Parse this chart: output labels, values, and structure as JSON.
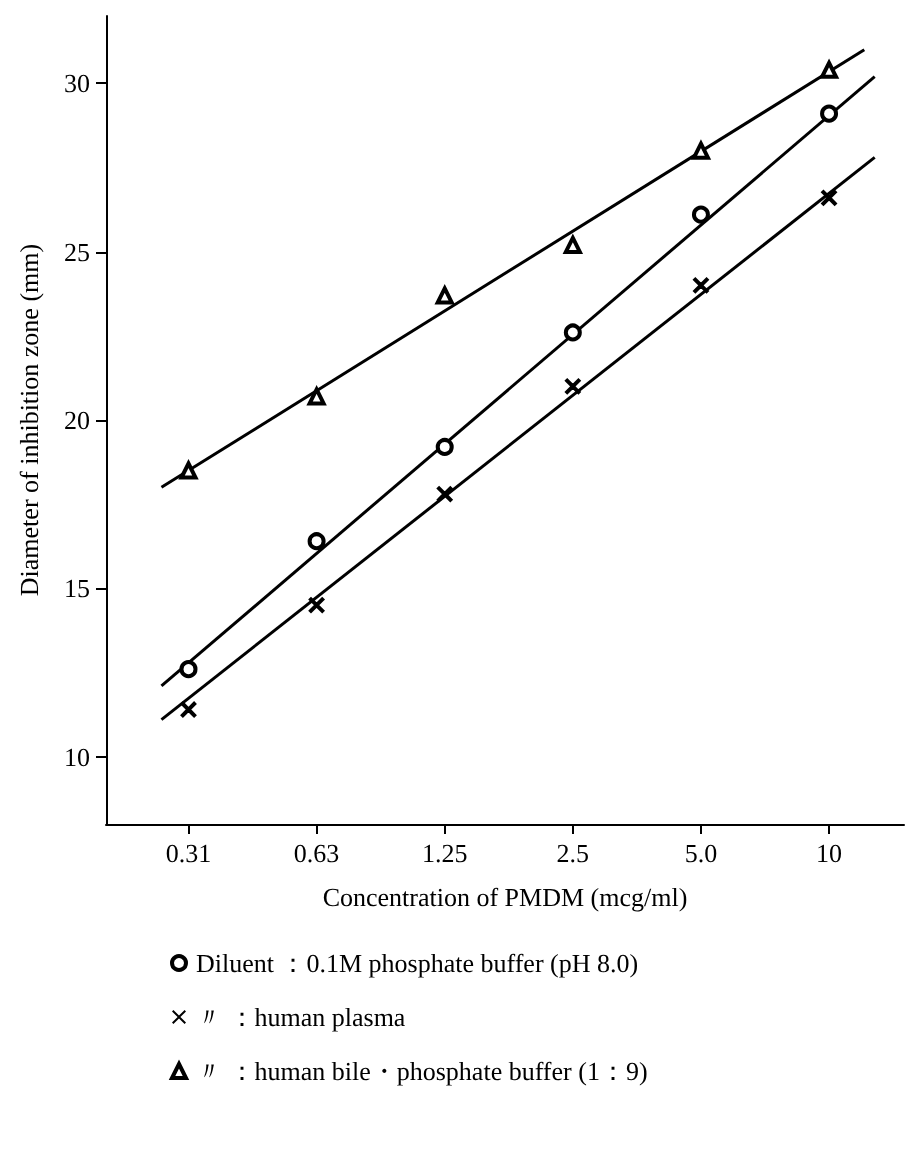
{
  "chart_data": {
    "type": "scatter",
    "xlabel": "Concentration of PMDM (mcg/ml)",
    "ylabel": "Diameter of inhibition zone (mm)",
    "log": "x",
    "xlim": [
      0.2,
      15
    ],
    "ylim": [
      8,
      32
    ],
    "xticks": [
      {
        "value": 0.3125,
        "label": "0.31"
      },
      {
        "value": 0.625,
        "label": "0.63"
      },
      1.25,
      2.5,
      {
        "value": 5,
        "label": "5.0"
      },
      10
    ],
    "yticks": [
      10,
      15,
      20,
      25,
      30
    ],
    "grid": false,
    "legend": "bottom",
    "x": [
      0.3125,
      0.625,
      1.25,
      2.5,
      5,
      10
    ],
    "series": [
      {
        "name": "Diluent ：0.1M phosphate buffer (pH 8.0)",
        "color": "#000000",
        "marker": "circle",
        "values": [
          12.6,
          16.4,
          19.2,
          22.6,
          26.1,
          29.1
        ]
      },
      {
        "name": "〃 ：human plasma",
        "color": "#000000",
        "marker": "cross",
        "values": [
          11.4,
          14.5,
          17.8,
          21.0,
          24.0,
          26.6
        ]
      },
      {
        "name": "〃 ：human bile・phosphate buffer (1：9)",
        "color": "#000000",
        "marker": "triangle",
        "values": [
          18.5,
          20.7,
          23.7,
          25.2,
          28.0,
          30.4
        ]
      },
      {
        "type": "line",
        "color": "#000000",
        "marker": "none",
        "x": [
          0.27,
          12.8
        ],
        "values": [
          12.1,
          30.2
        ]
      },
      {
        "type": "line",
        "color": "#000000",
        "marker": "none",
        "x": [
          0.27,
          12.8
        ],
        "values": [
          11.1,
          27.8
        ]
      },
      {
        "type": "line",
        "color": "#000000",
        "marker": "none",
        "x": [
          0.27,
          12.1
        ],
        "values": [
          18.0,
          31.0
        ]
      }
    ]
  }
}
